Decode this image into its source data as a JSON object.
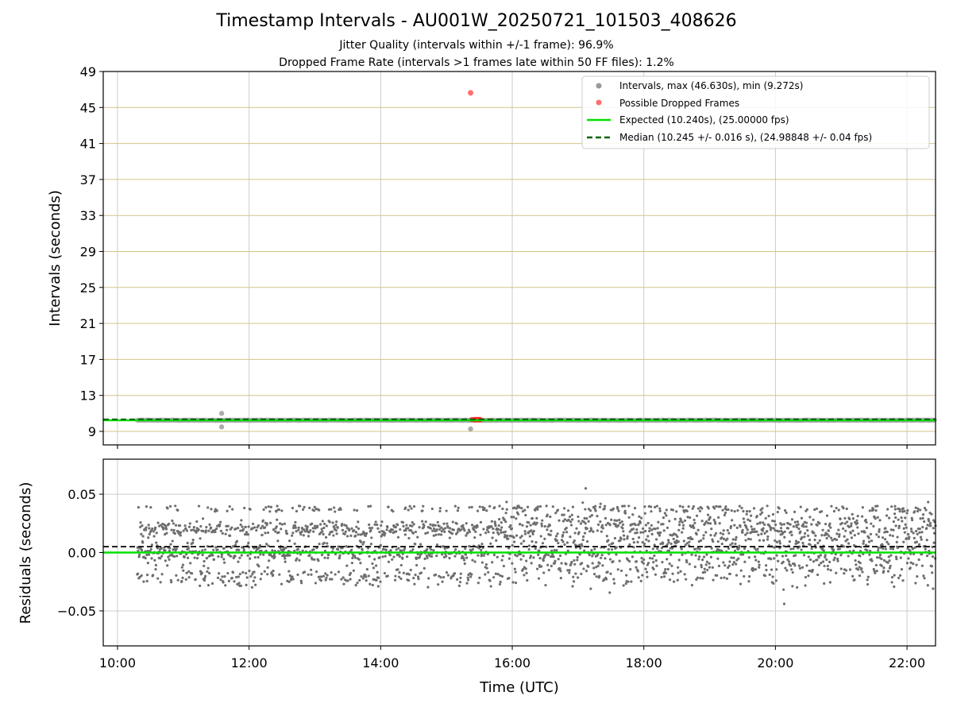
{
  "figure": {
    "title": "Timestamp Intervals - AU001W_20250721_101503_408626",
    "subtitle1": "Jitter Quality (intervals within +/-1 frame): 96.9%",
    "subtitle2": "Dropped Frame Rate (intervals >1 frames late within 50 FF files): 1.2%"
  },
  "colors": {
    "intervals": "#999999",
    "dropped": "#ff2020",
    "expected": "#00e000",
    "median": "#006400",
    "hgrid": "#d4c48a",
    "vgrid": "#cccccc",
    "residuals": "#6e6e6e"
  },
  "chart_data": [
    {
      "type": "scatter",
      "title": "",
      "xlabel": "",
      "ylabel": "Intervals (seconds)",
      "xlim": [
        "09:47",
        "22:26"
      ],
      "ylim": [
        7.5,
        49
      ],
      "yticks": [
        9,
        13,
        17,
        21,
        25,
        29,
        33,
        37,
        41,
        45,
        49
      ],
      "xticks": [
        "10:00",
        "12:00",
        "14:00",
        "16:00",
        "18:00",
        "20:00",
        "22:00"
      ],
      "grid": true,
      "legend_position": "top-right",
      "legend": [
        "Intervals, max (46.630s), min (9.272s)",
        "Possible Dropped Frames",
        "Expected (10.240s), (25.00000 fps)",
        "Median (10.245 +/- 0.016 s), (24.98848 +/- 0.04 fps)"
      ],
      "series": [
        {
          "name": "Intervals, max (46.630s), min (9.272s)",
          "kind": "points",
          "x_start": "10:18",
          "x_end": "22:26",
          "y_typical": 10.24,
          "outliers": [
            {
              "x": "11:35",
              "y": 11.0
            },
            {
              "x": "11:35",
              "y": 9.5
            },
            {
              "x": "15:22",
              "y": 9.272
            }
          ]
        },
        {
          "name": "Possible Dropped Frames",
          "kind": "points",
          "points": [
            {
              "x": "15:22",
              "y": 46.63
            },
            {
              "x": "15:23",
              "y": 10.3
            },
            {
              "x": "15:25",
              "y": 10.3
            },
            {
              "x": "15:26",
              "y": 10.3
            },
            {
              "x": "15:27",
              "y": 10.3
            },
            {
              "x": "15:28",
              "y": 10.3
            },
            {
              "x": "15:29",
              "y": 10.3
            },
            {
              "x": "15:30",
              "y": 10.3
            },
            {
              "x": "15:31",
              "y": 10.3
            }
          ]
        },
        {
          "name": "Expected (10.240s), (25.00000 fps)",
          "kind": "hline",
          "y": 10.24
        },
        {
          "name": "Median (10.245 +/- 0.016 s), (24.98848 +/- 0.04 fps)",
          "kind": "hline-dashed",
          "y": 10.245
        }
      ]
    },
    {
      "type": "scatter",
      "title": "",
      "xlabel": "Time (UTC)",
      "ylabel": "Residuals (seconds)",
      "xlim": [
        "09:47",
        "22:26"
      ],
      "ylim": [
        -0.08,
        0.08
      ],
      "yticks": [
        0.05,
        0.0,
        -0.05
      ],
      "ytick_labels": [
        "0.05",
        "0.00",
        "−0.05"
      ],
      "xticks": [
        "10:00",
        "12:00",
        "14:00",
        "16:00",
        "18:00",
        "20:00",
        "22:00"
      ],
      "grid": true,
      "series": [
        {
          "kind": "points",
          "x_start": "10:18",
          "x_end": "22:26",
          "bands": [
            0.02,
            0.0,
            -0.02
          ],
          "upper_outliers": 0.04,
          "lower_outliers": -0.03,
          "extremes": [
            {
              "x": "17:07",
              "y": 0.055
            },
            {
              "x": "20:08",
              "y": -0.044
            }
          ]
        },
        {
          "kind": "hline",
          "y": 0.0
        },
        {
          "kind": "hline-dashed",
          "y": 0.005
        }
      ]
    }
  ]
}
